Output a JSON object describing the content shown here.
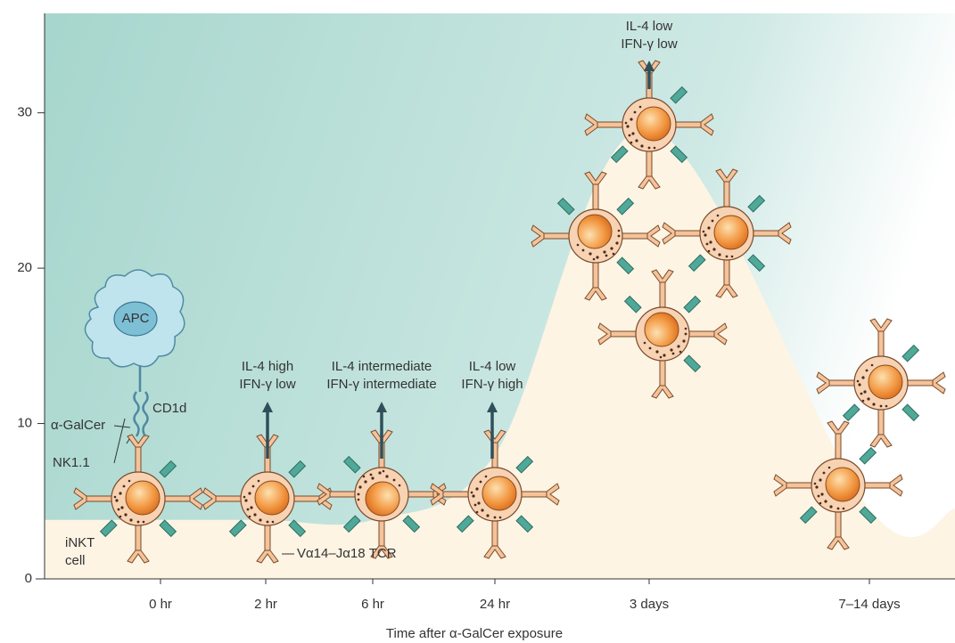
{
  "chart_data": {
    "type": "area",
    "x_label": "Time after α-GalCer exposure",
    "categories": [
      "0 hr",
      "2 hr",
      "6 hr",
      "24 hr",
      "3 days",
      "7–14 days"
    ],
    "values": [
      3.8,
      3.8,
      3.8,
      8,
      29,
      4.5
    ],
    "ylim": [
      0,
      36
    ],
    "yticks": [
      0,
      10,
      20,
      30
    ],
    "fill_color": "#fdf4e4",
    "background_color": "#a6d6cd",
    "annotations": [
      {
        "lines": [
          "IL-4 high",
          "IFN-γ low"
        ]
      },
      {
        "lines": [
          "IL-4 intermediate",
          "IFN-γ intermediate"
        ]
      },
      {
        "lines": [
          "IL-4 low",
          "IFN-γ high"
        ]
      },
      {
        "lines": [
          "IL-4 low",
          "IFN-γ low"
        ]
      }
    ],
    "labels": {
      "apc": "APC",
      "cd1d": "CD1d",
      "galcer": "α-GalCer",
      "nk": "NK1.1",
      "inkt": [
        "iNKT",
        "cell"
      ],
      "tcr": "Vα14–Jα18 TCR"
    }
  }
}
